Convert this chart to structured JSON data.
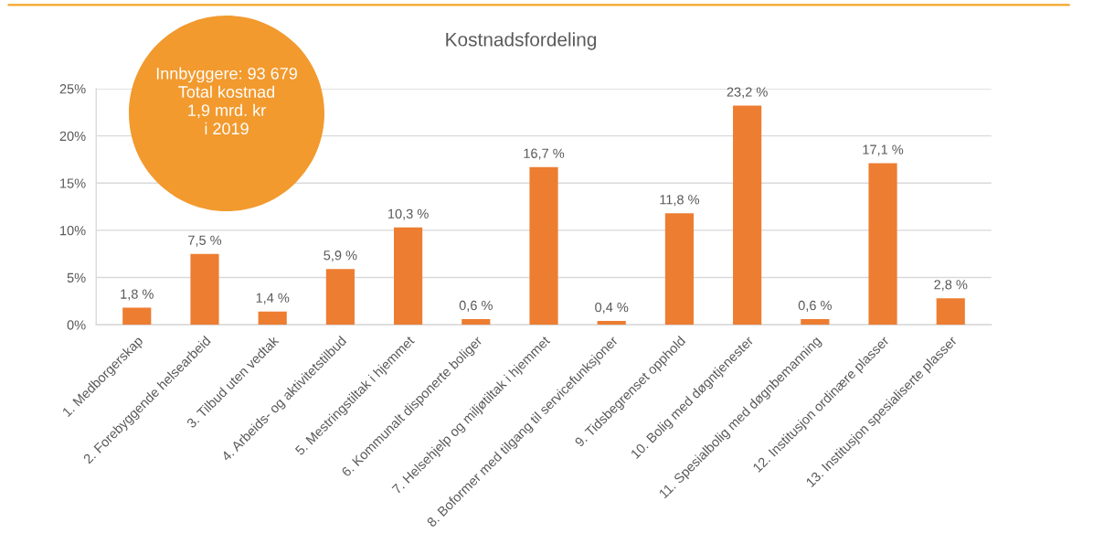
{
  "chart_data": {
    "type": "bar",
    "title": "Kostnadsfordeling",
    "categories": [
      "1. Medborgerskap",
      "2. Forebyggende helsearbeid",
      "3. Tilbud uten vedtak",
      "4. Arbeids- og aktivitetstilbud",
      "5. Mestringstiltak i hjemmet",
      "6. Kommunalt disponerte boliger",
      "7. Helsehjelp og miljøtiltak i hjemmet",
      "8. Boformer med tilgang til servicefunksjoner",
      "9. Tidsbegrenset opphold",
      "10. Bolig med døgntjenester",
      "11. Spesialbolig med døgnbemanning",
      "12. Institusjon ordinære plasser",
      "13. Institusjon spesialiserte plasser"
    ],
    "values": [
      1.8,
      7.5,
      1.4,
      5.9,
      10.3,
      0.6,
      16.7,
      0.4,
      11.8,
      23.2,
      0.6,
      17.1,
      2.8
    ],
    "value_labels": [
      "1,8 %",
      "7,5 %",
      "1,4 %",
      "5,9 %",
      "10,3 %",
      "0,6 %",
      "16,7 %",
      "0,4 %",
      "11,8 %",
      "23,2 %",
      "0,6 %",
      "17,1 %",
      "2,8 %"
    ],
    "color": "#ed7d31",
    "ylim": [
      0,
      25
    ],
    "yticks": [
      {
        "value": 0,
        "label": "0%"
      },
      {
        "value": 5,
        "label": "5%"
      },
      {
        "value": 10,
        "label": "10%"
      },
      {
        "value": 15,
        "label": "15%"
      },
      {
        "value": 20,
        "label": "20%"
      },
      {
        "value": 25,
        "label": "25%"
      }
    ],
    "grid": "y",
    "annotations": [
      "Innbyggere: 93 679\nTotal kostnad\n1,9 mrd. kr\ni 2019"
    ]
  }
}
